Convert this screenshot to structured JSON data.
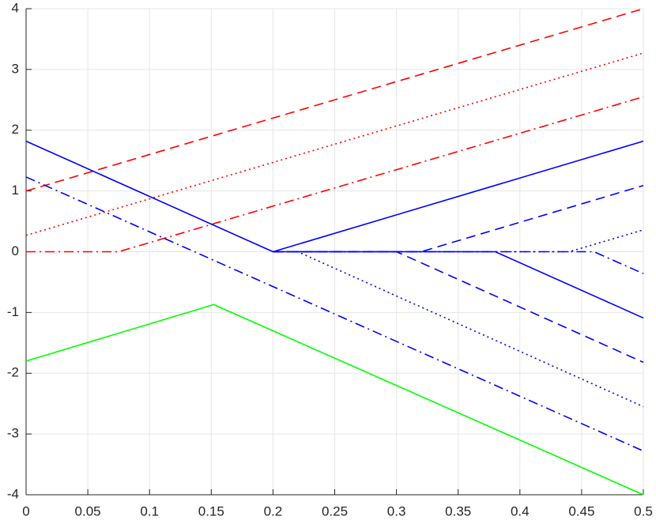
{
  "chart_data": {
    "type": "line",
    "xlim": [
      0,
      0.5
    ],
    "ylim": [
      -4,
      4
    ],
    "xticks": [
      0,
      0.05,
      0.1,
      0.15,
      0.2,
      0.25,
      0.3,
      0.35,
      0.4,
      0.45,
      0.5
    ],
    "yticks": [
      -4,
      -3,
      -2,
      -1,
      0,
      1,
      2,
      3,
      4
    ],
    "grid": true,
    "series": [
      {
        "color": "#ff0000",
        "style": "dashed",
        "x": [
          0,
          0.5
        ],
        "values": [
          1.0,
          4.0
        ]
      },
      {
        "color": "#ff0000",
        "style": "dotted",
        "x": [
          0,
          0.5
        ],
        "values": [
          0.27,
          3.27
        ]
      },
      {
        "color": "#ff0000",
        "style": "dashdot",
        "x": [
          0,
          0.075,
          0.5
        ],
        "values": [
          0,
          0,
          2.55
        ]
      },
      {
        "color": "#0000ff",
        "style": "solid",
        "x": [
          0,
          0.2,
          0.5
        ],
        "values": [
          1.82,
          0,
          1.82
        ]
      },
      {
        "color": "#0000ff",
        "style": "solid",
        "x": [
          0.2,
          0.38,
          0.5
        ],
        "values": [
          0,
          0,
          -1.09
        ]
      },
      {
        "color": "#0000ff",
        "style": "dashed",
        "x": [
          0.2,
          0.32,
          0.5
        ],
        "values": [
          0,
          0,
          1.09
        ]
      },
      {
        "color": "#0000ff",
        "style": "dashed",
        "x": [
          0.2,
          0.3,
          0.5
        ],
        "values": [
          0,
          0,
          -1.82
        ]
      },
      {
        "color": "#0000ff",
        "style": "dotted",
        "x": [
          0.2,
          0.44,
          0.5
        ],
        "values": [
          0,
          0,
          0.36
        ]
      },
      {
        "color": "#0000ff",
        "style": "dotted",
        "x": [
          0.2,
          0.22,
          0.5
        ],
        "values": [
          0,
          0,
          -2.55
        ]
      },
      {
        "color": "#0000ff",
        "style": "dashdot",
        "x": [
          0,
          0.5
        ],
        "values": [
          1.23,
          -3.28
        ]
      },
      {
        "color": "#0000ff",
        "style": "dashdot",
        "x": [
          0.2,
          0.46,
          0.5
        ],
        "values": [
          0,
          0,
          -0.36
        ]
      },
      {
        "color": "#00ff00",
        "style": "solid",
        "x": [
          0,
          0.152,
          0.5
        ],
        "values": [
          -1.8,
          -0.87,
          -4.0
        ]
      }
    ]
  }
}
